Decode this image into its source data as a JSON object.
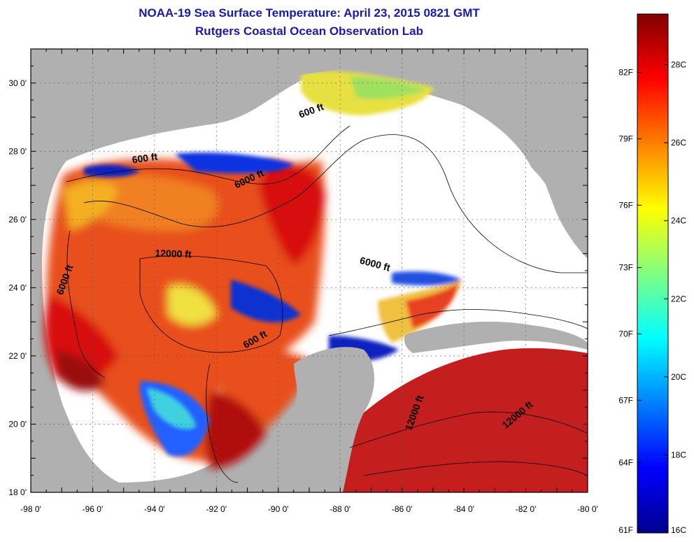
{
  "title": {
    "line1": "NOAA-19 Sea Surface Temperature:  April 23, 2015 0821 GMT",
    "line2": "Rutgers Coastal Ocean Observation Lab"
  },
  "map": {
    "lon_range": [
      -98,
      -80
    ],
    "lat_range": [
      18,
      31
    ],
    "x_tick_labels": [
      "-98 0'",
      "-96 0'",
      "-94 0'",
      "-92 0'",
      "-90 0'",
      "-88 0'",
      "-86 0'",
      "-84 0'",
      "-82 0'",
      "-80 0'"
    ],
    "x_tick_values": [
      -98,
      -96,
      -94,
      -92,
      -90,
      -88,
      -86,
      -84,
      -82,
      -80
    ],
    "y_tick_labels": [
      "18 0'",
      "20 0'",
      "22 0'",
      "24 0'",
      "26 0'",
      "28 0'",
      "30 0'"
    ],
    "y_tick_values": [
      18,
      20,
      22,
      24,
      26,
      28,
      30
    ],
    "land_color": "#b0b0b0",
    "cloud_color": "#ffffff",
    "contour_labels": [
      {
        "text": "600 ft",
        "lon": -88.9,
        "lat": 29.1,
        "rotate": -20
      },
      {
        "text": "600 ft",
        "lon": -94.3,
        "lat": 27.7,
        "rotate": -8
      },
      {
        "text": "6000 ft",
        "lon": -90.9,
        "lat": 27.1,
        "rotate": -25
      },
      {
        "text": "12000 ft",
        "lon": -93.4,
        "lat": 24.9,
        "rotate": 2
      },
      {
        "text": "6000 ft",
        "lon": -96.8,
        "lat": 24.2,
        "rotate": -70
      },
      {
        "text": "6000 ft",
        "lon": -86.9,
        "lat": 24.6,
        "rotate": 15
      },
      {
        "text": "600 ft",
        "lon": -90.7,
        "lat": 22.4,
        "rotate": -30
      },
      {
        "text": "12000 ft",
        "lon": -85.5,
        "lat": 20.3,
        "rotate": -70
      },
      {
        "text": "12000 ft",
        "lon": -82.2,
        "lat": 20.2,
        "rotate": -40
      }
    ]
  },
  "colorbar": {
    "gradient": [
      "#00008f",
      "#0000ff",
      "#0080ff",
      "#00ffff",
      "#80ff80",
      "#ffff00",
      "#ff8000",
      "#ff0000",
      "#800000"
    ],
    "right_labels": [
      "16C",
      "18C",
      "20C",
      "22C",
      "24C",
      "26C",
      "28C"
    ],
    "right_values": [
      16,
      18,
      20,
      22,
      24,
      26,
      28
    ],
    "left_labels": [
      "61F",
      "64F",
      "67F",
      "70F",
      "73F",
      "76F",
      "79F",
      "82F"
    ],
    "left_values_c": [
      16.1,
      17.8,
      19.4,
      21.1,
      22.8,
      24.4,
      26.1,
      27.8
    ],
    "range_c": [
      16,
      29.3
    ]
  }
}
